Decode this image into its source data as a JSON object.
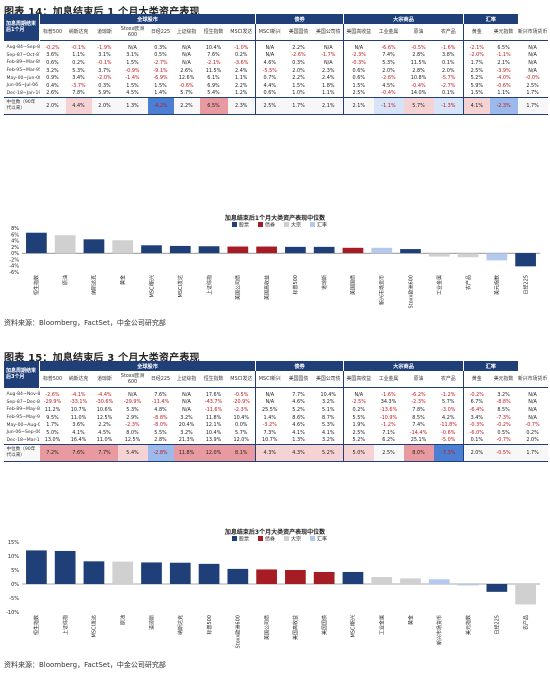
{
  "fig14": {
    "title_prefix": "图表 14：",
    "title_text": "加息结束后 1 个月大类资产表现",
    "source": "资料来源：Bloomberg，FactSet，中金公司研究部",
    "table": {
      "corner": "加息周期结束后1个月",
      "groups": [
        {
          "label": "全球股市",
          "span": 8
        },
        {
          "label": "债券",
          "span": 3
        },
        {
          "label": "大宗商品",
          "span": 4
        },
        {
          "label": "汇率",
          "span": 2
        }
      ],
      "columns": [
        "标普500",
        "纳斯达克",
        "道琼斯",
        "Stoxx欧洲600",
        "日经225",
        "上证综指",
        "恒生指数",
        "MSCI发达",
        "MSCI新兴",
        "美国国债",
        "美国公司债",
        "美国高收益",
        "工业金属",
        "原油",
        "农产品",
        "黄金",
        "美元指数",
        "新兴市场货币"
      ],
      "rows": [
        {
          "period": "Aug-84~Sep-84",
          "values": [
            "-0.2%",
            "-0.1%",
            "-1.9%",
            "N/A",
            "0.3%",
            "N/A",
            "10.4%",
            "-1.0%",
            "N/A",
            "2.2%",
            "N/A",
            "N/A",
            "-6.6%",
            "-0.5%",
            "-1.6%",
            "-2.1%",
            "6.5%",
            "N/A"
          ]
        },
        {
          "period": "Sep-87~Oct-87",
          "values": [
            "3.6%",
            "1.1%",
            "3.1%",
            "3.1%",
            "0.5%",
            "N/A",
            "7.6%",
            "0.2%",
            "N/A",
            "-2.6%",
            "-1.7%",
            "-2.3%",
            "7.4%",
            "2.8%",
            "3.8%",
            "-2.0%",
            "-1.1%",
            "N/A"
          ]
        },
        {
          "period": "Feb-89~Mar-89",
          "values": [
            "0.6%",
            "0.2%",
            "-0.1%",
            "1.5%",
            "-2.7%",
            "N/A",
            "-2.1%",
            "-3.6%",
            "4.6%",
            "0.3%",
            "N/A",
            "-0.3%",
            "5.3%",
            "11.5%",
            "0.1%",
            "1.7%",
            "2.1%",
            "N/A"
          ]
        },
        {
          "period": "Feb-95~Mar-95",
          "values": [
            "3.2%",
            "5.3%",
            "3.7%",
            "-0.9%",
            "-9.1%",
            "2.6%",
            "11.5%",
            "2.4%",
            "-5.5%",
            "2.0%",
            "2.3%",
            "0.6%",
            "2.0%",
            "2.8%",
            "2.0%",
            "2.5%",
            "-3.9%",
            "N/A"
          ]
        },
        {
          "period": "May-00~Jun-00",
          "values": [
            "0.9%",
            "3.4%",
            "-2.0%",
            "-1.4%",
            "-6.9%",
            "12.6%",
            "6.1%",
            "1.1%",
            "0.7%",
            "2.2%",
            "2.4%",
            "0.6%",
            "-2.6%",
            "10.8%",
            "-5.7%",
            "5.2%",
            "-4.0%",
            "-0.0%"
          ]
        },
        {
          "period": "Jun-06~Jul-06",
          "values": [
            "0.4%",
            "-3.7%",
            "0.3%",
            "1.5%",
            "1.5%",
            "-0.6%",
            "6.9%",
            "2.2%",
            "4.4%",
            "1.5%",
            "1.8%",
            "1.5%",
            "4.5%",
            "-0.4%",
            "-2.7%",
            "5.9%",
            "-0.6%",
            "2.5%"
          ]
        },
        {
          "period": "Dec-18~Jan-19",
          "values": [
            "2.6%",
            "7.8%",
            "5.9%",
            "4.5%",
            "1.4%",
            "5.7%",
            "5.4%",
            "1.2%",
            "0.6%",
            "1.0%",
            "1.1%",
            "2.5%",
            "-0.4%",
            "14.0%",
            "0.1%",
            "1.5%",
            "1.1%",
            "1.7%"
          ]
        }
      ],
      "median": {
        "label": "中位数（90年代以来）",
        "values": [
          "2.0%",
          "4.4%",
          "2.0%",
          "1.3%",
          "-4.2%",
          "2.2%",
          "6.5%",
          "2.3%",
          "2.5%",
          "1.7%",
          "2.1%",
          "2.1%",
          "-1.1%",
          "5.7%",
          "-1.3%",
          "4.1%",
          "-2.3%",
          "1.7%"
        ]
      }
    },
    "chart_title": "加息结束后1个月大类资产表现中位数",
    "legend": [
      "股票",
      "债券",
      "大宗",
      "汇率"
    ]
  },
  "fig15": {
    "title_prefix": "图表 15：",
    "title_text": "加息结束后 3 个月大类资产表现",
    "source": "资料来源：Bloomberg，FactSet，中金公司研究部",
    "table": {
      "corner": "加息周期结束后3个月",
      "groups": [
        {
          "label": "全球股市",
          "span": 8
        },
        {
          "label": "债券",
          "span": 3
        },
        {
          "label": "大宗商品",
          "span": 4
        },
        {
          "label": "汇率",
          "span": 2
        }
      ],
      "columns": [
        "标普500",
        "纳斯达克",
        "道琼斯",
        "Stoxx欧洲600",
        "日经225",
        "上证综指",
        "恒生指数",
        "MSCI发达",
        "MSCI新兴",
        "美国国债",
        "美国公司债",
        "美国高收益",
        "工业金属",
        "原油",
        "农产品",
        "黄金",
        "美元指数",
        "新兴市场货币"
      ],
      "rows": [
        {
          "period": "Aug-84~Nov-84",
          "values": [
            "-2.6%",
            "-4.1%",
            "-4.4%",
            "N/A",
            "7.6%",
            "N/A",
            "17.6%",
            "-0.5%",
            "N/A",
            "7.7%",
            "10.4%",
            "N/A",
            "-1.6%",
            "-6.2%",
            "-1.2%",
            "-0.2%",
            "3.2%",
            "N/A"
          ]
        },
        {
          "period": "Sep-87~Dec-87",
          "values": [
            "-29.9%",
            "-33.1%",
            "-30.6%",
            "-29.9%",
            "-11.4%",
            "N/A",
            "-43.7%",
            "-20.9%",
            "N/A",
            "4.6%",
            "3.2%",
            "-2.5%",
            "34.3%",
            "-2.3%",
            "5.7%",
            "6.7%",
            "-8.8%",
            "N/A"
          ]
        },
        {
          "period": "Feb-89~May-89",
          "values": [
            "11.2%",
            "10.7%",
            "10.6%",
            "5.3%",
            "4.8%",
            "N/A",
            "-11.6%",
            "-2.3%",
            "25.5%",
            "5.2%",
            "5.1%",
            "0.2%",
            "-13.6%",
            "7.8%",
            "-3.0%",
            "-6.4%",
            "8.5%",
            "N/A"
          ]
        },
        {
          "period": "Feb-95~May-95",
          "values": [
            "9.5%",
            "11.0%",
            "12.5%",
            "2.9%",
            "-8.8%",
            "3.2%",
            "11.8%",
            "10.4%",
            "1.4%",
            "8.6%",
            "8.7%",
            "5.5%",
            "-10.9%",
            "8.5%",
            "4.2%",
            "3.4%",
            "-7.3%",
            "N/A"
          ]
        },
        {
          "period": "May-00~Aug-00",
          "values": [
            "1.7%",
            "3.6%",
            "2.2%",
            "-2.3%",
            "-8.0%",
            "20.4%",
            "12.1%",
            "0.0%",
            "-3.2%",
            "4.6%",
            "5.3%",
            "1.9%",
            "-1.2%",
            "7.4%",
            "-11.8%",
            "-0.3%",
            "-0.2%",
            "-0.7%"
          ]
        },
        {
          "period": "Jun-06~Sep-06",
          "values": [
            "5.0%",
            "4.1%",
            "4.5%",
            "8.0%",
            "5.5%",
            "3.2%",
            "10.4%",
            "5.7%",
            "7.3%",
            "4.1%",
            "4.1%",
            "2.5%",
            "7.1%",
            "-14.4%",
            "-0.6%",
            "-6.0%",
            "0.5%",
            "0.2%"
          ]
        },
        {
          "period": "Dec-18~Mar-19",
          "values": [
            "13.0%",
            "16.4%",
            "11.0%",
            "12.5%",
            "2.8%",
            "21.3%",
            "13.9%",
            "12.0%",
            "10.7%",
            "1.3%",
            "3.2%",
            "5.2%",
            "6.2%",
            "25.1%",
            "-5.0%",
            "0.1%",
            "-0.7%",
            "2.0%"
          ]
        }
      ],
      "median": {
        "label": "中位数（90年代以来）",
        "values": [
          "7.2%",
          "7.6%",
          "7.7%",
          "5.4%",
          "-2.8%",
          "11.8%",
          "12.0%",
          "8.1%",
          "4.3%",
          "4.3%",
          "5.2%",
          "5.0%",
          "2.5%",
          "8.0%",
          "-7.3%",
          "2.0%",
          "-0.5%",
          "1.7%"
        ]
      }
    },
    "chart_title": "加息结束后3个月大类资产表现中位数",
    "legend": [
      "股票",
      "债券",
      "大宗",
      "汇率"
    ]
  },
  "colors": {
    "stock": "#1f3f79",
    "bond": "#a51c24",
    "commodity": "#d0d0d0",
    "fx": "#b5c9ec",
    "header": "#1f3f79"
  },
  "chart_data": [
    {
      "type": "bar",
      "title": "加息结束后1个月大类资产表现中位数",
      "categories": [
        "恒生指数",
        "原油",
        "纳斯达克",
        "黄金",
        "MSCI新兴",
        "MSCI发达",
        "上证综指",
        "美国公司债",
        "美国高收益",
        "标普500",
        "道琼斯",
        "美国国债",
        "新兴市场货币",
        "Stoxx欧洲600",
        "工业金属",
        "农产品",
        "美元指数",
        "日经225"
      ],
      "values": [
        6.5,
        5.7,
        4.4,
        4.1,
        2.5,
        2.3,
        2.2,
        2.1,
        2.1,
        2.0,
        2.0,
        1.7,
        1.7,
        1.3,
        -1.1,
        -1.3,
        -2.3,
        -4.2
      ],
      "groups": [
        "股票",
        "大宗",
        "股票",
        "大宗",
        "股票",
        "股票",
        "股票",
        "债券",
        "债券",
        "股票",
        "股票",
        "债券",
        "汇率",
        "股票",
        "大宗",
        "大宗",
        "汇率",
        "股票"
      ],
      "ylim": [
        -6,
        8
      ],
      "yticks": [
        -6,
        -4,
        -2,
        0,
        2,
        4,
        6,
        8
      ],
      "ytick_labels": [
        "-6%",
        "-4%",
        "-2%",
        "0%",
        "2%",
        "4%",
        "6%",
        "8%"
      ],
      "legend": [
        "股票",
        "债券",
        "大宗",
        "汇率"
      ]
    },
    {
      "type": "bar",
      "title": "加息结束后3个月大类资产表现中位数",
      "categories": [
        "恒生指数",
        "上证综指",
        "MSCI发达",
        "原油",
        "道琼斯",
        "纳斯达克",
        "标普500",
        "Stoxx欧洲600",
        "美国公司债",
        "美国高收益",
        "美国国债",
        "MSCI新兴",
        "工业金属",
        "黄金",
        "新兴市场货币",
        "美元指数",
        "日经225",
        "农产品"
      ],
      "values": [
        12.0,
        11.8,
        8.1,
        8.0,
        7.7,
        7.6,
        7.2,
        5.4,
        5.2,
        5.0,
        4.3,
        4.3,
        2.5,
        2.0,
        1.7,
        -0.5,
        -2.8,
        -7.3
      ],
      "groups": [
        "股票",
        "股票",
        "股票",
        "大宗",
        "股票",
        "股票",
        "股票",
        "股票",
        "债券",
        "债券",
        "债券",
        "股票",
        "大宗",
        "大宗",
        "汇率",
        "汇率",
        "股票",
        "大宗"
      ],
      "ylim": [
        -10,
        15
      ],
      "yticks": [
        -10,
        -5,
        0,
        5,
        10,
        15
      ],
      "ytick_labels": [
        "-10%",
        "-5%",
        "0%",
        "5%",
        "10%",
        "15%"
      ],
      "legend": [
        "股票",
        "债券",
        "大宗",
        "汇率"
      ]
    }
  ]
}
